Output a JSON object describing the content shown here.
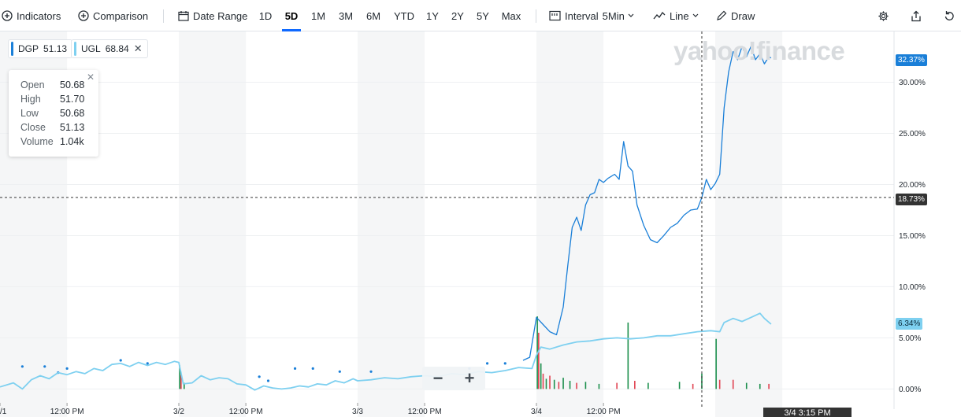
{
  "toolbar": {
    "indicators": "Indicators",
    "comparison": "Comparison",
    "date_range": "Date Range",
    "ranges": [
      "1D",
      "5D",
      "1M",
      "3M",
      "6M",
      "YTD",
      "1Y",
      "2Y",
      "5Y",
      "Max"
    ],
    "active_range": "5D",
    "interval_label": "Interval",
    "interval_value": "5Min",
    "line": "Line",
    "draw": "Draw"
  },
  "legend": [
    {
      "symbol": "DGP",
      "value": "51.13",
      "color": "#1a7fd8",
      "closable": false
    },
    {
      "symbol": "UGL",
      "value": "68.84",
      "color": "#7ed0f0",
      "closable": true
    }
  ],
  "ohlc": {
    "open_label": "Open",
    "open": "50.68",
    "high_label": "High",
    "high": "51.70",
    "low_label": "Low",
    "low": "50.68",
    "close_label": "Close",
    "close": "51.13",
    "volume_label": "Volume",
    "volume": "1.04k"
  },
  "watermark": "yahoo!finance",
  "zoom": {
    "minus": "−",
    "plus": "+"
  },
  "badges": {
    "dgp": "32.37%",
    "ugl": "6.34%",
    "crosshair_y": "18.73%",
    "crosshair_x": "3/4 3:15 PM"
  },
  "chart_data": {
    "type": "line",
    "ylim": [
      -1.2,
      34.5
    ],
    "y_ticks": [
      {
        "v": 0,
        "label": "0.00%"
      },
      {
        "v": 5,
        "label": "5.00%"
      },
      {
        "v": 10,
        "label": "10.00%"
      },
      {
        "v": 15,
        "label": "15.00%"
      },
      {
        "v": 20,
        "label": "20.00%"
      },
      {
        "v": 25,
        "label": "25.00%"
      },
      {
        "v": 30,
        "label": "30.00%"
      }
    ],
    "xlim": [
      0,
      20
    ],
    "day_sessions": [
      [
        0,
        4
      ],
      [
        4,
        8
      ],
      [
        8,
        12
      ],
      [
        12,
        16
      ],
      [
        16,
        20
      ]
    ],
    "shaded_ranges": [
      [
        0,
        1.5
      ],
      [
        4,
        5.5
      ],
      [
        8,
        9.5
      ],
      [
        12,
        13.5
      ],
      [
        16,
        17.5
      ]
    ],
    "x_ticks": [
      {
        "x": 0,
        "label": "/1"
      },
      {
        "x": 1.5,
        "label": "12:00 PM"
      },
      {
        "x": 4,
        "label": "3/2"
      },
      {
        "x": 5.5,
        "label": "12:00 PM"
      },
      {
        "x": 8,
        "label": "3/3"
      },
      {
        "x": 9.5,
        "label": "12:00 PM"
      },
      {
        "x": 12,
        "label": "3/4"
      },
      {
        "x": 13.5,
        "label": "12:00 PM"
      }
    ],
    "crosshair": {
      "x": 15.7,
      "y": 18.73
    },
    "series": [
      {
        "name": "DGP",
        "color": "#1a7fd8",
        "points": [
          [
            11.7,
            2.8
          ],
          [
            11.85,
            3.1
          ],
          [
            12.0,
            7.0
          ],
          [
            12.15,
            6.3
          ],
          [
            12.3,
            5.6
          ],
          [
            12.45,
            5.3
          ],
          [
            12.6,
            8.0
          ],
          [
            12.7,
            12.0
          ],
          [
            12.8,
            15.8
          ],
          [
            12.9,
            16.8
          ],
          [
            13.0,
            15.5
          ],
          [
            13.1,
            18.0
          ],
          [
            13.2,
            19.0
          ],
          [
            13.3,
            19.2
          ],
          [
            13.4,
            20.5
          ],
          [
            13.5,
            20.2
          ],
          [
            13.6,
            20.6
          ],
          [
            13.75,
            21.0
          ],
          [
            13.85,
            20.5
          ],
          [
            13.95,
            24.2
          ],
          [
            14.05,
            21.8
          ],
          [
            14.15,
            21.3
          ],
          [
            14.25,
            18.0
          ],
          [
            14.4,
            16.0
          ],
          [
            14.55,
            14.6
          ],
          [
            14.7,
            14.3
          ],
          [
            14.85,
            15.0
          ],
          [
            15.0,
            15.8
          ],
          [
            15.15,
            16.2
          ],
          [
            15.3,
            17.0
          ],
          [
            15.45,
            17.5
          ],
          [
            15.6,
            17.6
          ],
          [
            15.7,
            18.73
          ],
          [
            15.8,
            20.5
          ],
          [
            15.9,
            19.5
          ],
          [
            16.0,
            20.1
          ],
          [
            16.1,
            21.0
          ],
          [
            16.2,
            27.5
          ],
          [
            16.3,
            31.0
          ],
          [
            16.4,
            33.0
          ],
          [
            16.5,
            32.2
          ],
          [
            16.6,
            33.5
          ],
          [
            16.7,
            32.5
          ],
          [
            16.8,
            33.5
          ],
          [
            16.9,
            32.2
          ],
          [
            17.0,
            32.8
          ],
          [
            17.1,
            31.8
          ],
          [
            17.2,
            32.5
          ],
          [
            17.25,
            32.37
          ]
        ],
        "dots": [
          [
            0.5,
            2.2
          ],
          [
            1.0,
            2.2
          ],
          [
            1.3,
            1.6
          ],
          [
            1.5,
            2.0
          ],
          [
            2.7,
            2.8
          ],
          [
            3.3,
            2.5
          ],
          [
            5.8,
            1.2
          ],
          [
            6.0,
            0.8
          ],
          [
            6.6,
            2.0
          ],
          [
            7.0,
            2.0
          ],
          [
            7.6,
            1.7
          ],
          [
            8.3,
            1.7
          ],
          [
            10.5,
            2.0
          ],
          [
            10.9,
            2.5
          ],
          [
            11.3,
            2.5
          ]
        ],
        "label": "32.37%"
      },
      {
        "name": "UGL",
        "color": "#7ed0f0",
        "points": [
          [
            0.0,
            0.2
          ],
          [
            0.3,
            0.6
          ],
          [
            0.5,
            0.0
          ],
          [
            0.7,
            0.9
          ],
          [
            0.9,
            1.3
          ],
          [
            1.1,
            1.0
          ],
          [
            1.3,
            1.6
          ],
          [
            1.5,
            1.4
          ],
          [
            1.7,
            1.7
          ],
          [
            1.9,
            1.5
          ],
          [
            2.1,
            2.0
          ],
          [
            2.3,
            1.8
          ],
          [
            2.5,
            2.4
          ],
          [
            2.7,
            2.5
          ],
          [
            2.9,
            2.2
          ],
          [
            3.1,
            2.6
          ],
          [
            3.3,
            2.3
          ],
          [
            3.5,
            2.6
          ],
          [
            3.7,
            2.4
          ],
          [
            3.9,
            2.7
          ],
          [
            4.0,
            2.6
          ],
          [
            4.1,
            0.5
          ],
          [
            4.3,
            0.6
          ],
          [
            4.5,
            1.3
          ],
          [
            4.7,
            0.9
          ],
          [
            4.9,
            1.1
          ],
          [
            5.1,
            1.0
          ],
          [
            5.3,
            0.5
          ],
          [
            5.5,
            0.4
          ],
          [
            5.7,
            -0.1
          ],
          [
            5.9,
            0.3
          ],
          [
            6.1,
            0.1
          ],
          [
            6.3,
            0.0
          ],
          [
            6.5,
            0.1
          ],
          [
            6.7,
            0.3
          ],
          [
            6.9,
            0.2
          ],
          [
            7.1,
            0.5
          ],
          [
            7.3,
            0.4
          ],
          [
            7.5,
            0.8
          ],
          [
            7.7,
            0.6
          ],
          [
            7.9,
            1.0
          ],
          [
            8.0,
            0.8
          ],
          [
            8.3,
            0.9
          ],
          [
            8.6,
            1.1
          ],
          [
            8.9,
            1.0
          ],
          [
            9.2,
            1.2
          ],
          [
            9.5,
            1.3
          ],
          [
            9.8,
            1.2
          ],
          [
            10.1,
            1.5
          ],
          [
            10.4,
            1.4
          ],
          [
            10.7,
            1.7
          ],
          [
            11.0,
            1.6
          ],
          [
            11.3,
            1.8
          ],
          [
            11.6,
            2.1
          ],
          [
            11.9,
            2.0
          ],
          [
            12.0,
            3.3
          ],
          [
            12.1,
            4.1
          ],
          [
            12.3,
            3.9
          ],
          [
            12.6,
            4.3
          ],
          [
            12.9,
            4.6
          ],
          [
            13.2,
            4.7
          ],
          [
            13.5,
            4.9
          ],
          [
            13.8,
            5.0
          ],
          [
            14.1,
            4.9
          ],
          [
            14.4,
            5.0
          ],
          [
            14.7,
            5.2
          ],
          [
            15.0,
            5.2
          ],
          [
            15.3,
            5.4
          ],
          [
            15.6,
            5.6
          ],
          [
            15.9,
            5.7
          ],
          [
            16.1,
            5.6
          ],
          [
            16.2,
            6.5
          ],
          [
            16.4,
            6.9
          ],
          [
            16.6,
            6.6
          ],
          [
            16.8,
            7.0
          ],
          [
            17.0,
            7.4
          ],
          [
            17.1,
            6.9
          ],
          [
            17.25,
            6.34
          ]
        ],
        "label": "6.34%"
      }
    ],
    "volume": {
      "baseline": 0,
      "bars": [
        [
          4.02,
          2.3,
          "#1c8f4d"
        ],
        [
          4.05,
          1.4,
          "#e04150"
        ],
        [
          4.12,
          0.6,
          "#1c8f4d"
        ],
        [
          12.02,
          7.1,
          "#1c8f4d"
        ],
        [
          12.05,
          5.5,
          "#e04150"
        ],
        [
          12.1,
          2.5,
          "#1c8f4d"
        ],
        [
          12.15,
          1.5,
          "#e04150"
        ],
        [
          12.22,
          1.0,
          "#1c8f4d"
        ],
        [
          12.3,
          1.3,
          "#e04150"
        ],
        [
          12.4,
          0.9,
          "#1c8f4d"
        ],
        [
          12.5,
          0.7,
          "#e04150"
        ],
        [
          12.6,
          1.1,
          "#1c8f4d"
        ],
        [
          12.75,
          0.8,
          "#1c8f4d"
        ],
        [
          12.9,
          0.6,
          "#e04150"
        ],
        [
          13.1,
          0.7,
          "#1c8f4d"
        ],
        [
          13.4,
          0.5,
          "#1c8f4d"
        ],
        [
          13.8,
          0.6,
          "#e04150"
        ],
        [
          14.05,
          6.5,
          "#1c8f4d"
        ],
        [
          14.2,
          0.8,
          "#e04150"
        ],
        [
          14.5,
          0.6,
          "#1c8f4d"
        ],
        [
          15.2,
          0.7,
          "#1c8f4d"
        ],
        [
          15.5,
          0.5,
          "#e04150"
        ],
        [
          15.7,
          1.5,
          "#1c8f4d"
        ],
        [
          16.02,
          4.9,
          "#1c8f4d"
        ],
        [
          16.1,
          0.9,
          "#e04150"
        ],
        [
          16.4,
          0.9,
          "#e04150"
        ],
        [
          16.7,
          0.6,
          "#1c8f4d"
        ],
        [
          17.0,
          0.5,
          "#1c8f4d"
        ],
        [
          17.2,
          0.5,
          "#e04150"
        ]
      ]
    }
  }
}
